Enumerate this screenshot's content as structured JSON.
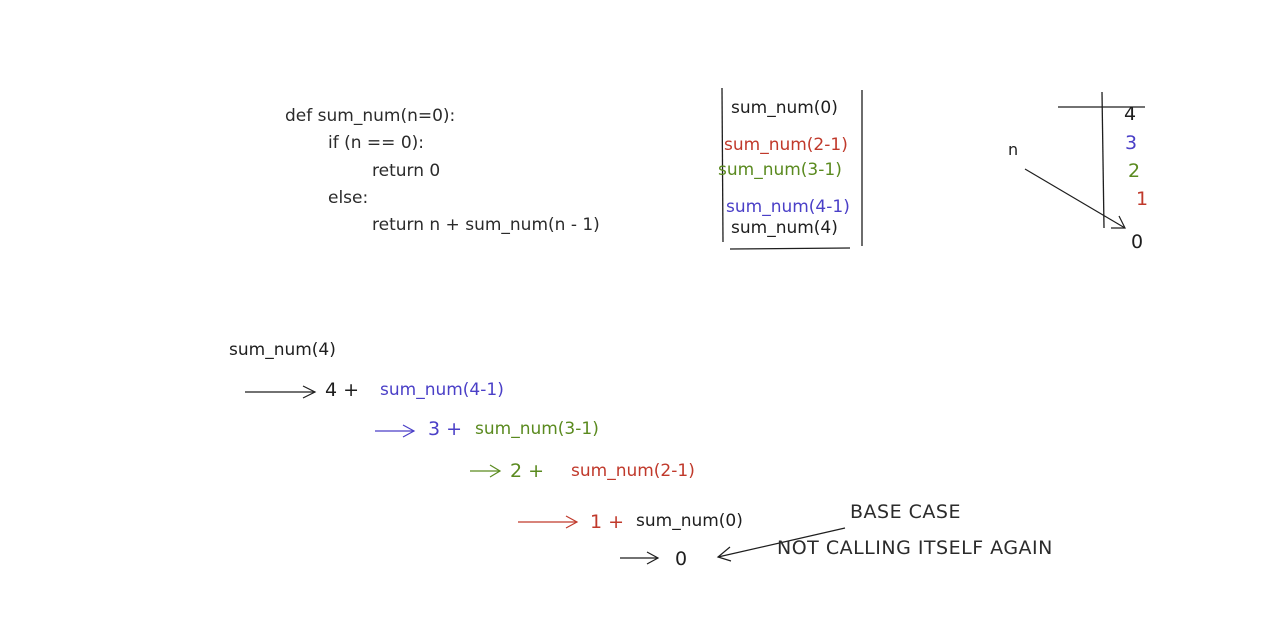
{
  "code": {
    "line1": "def sum_num(n=0):",
    "line2": "if (n == 0):",
    "line3": "return 0",
    "line4": "else:",
    "line5": "return n + sum_num(n - 1)"
  },
  "stack": {
    "frames": [
      "sum_num(0)",
      "sum_num(2-1)",
      "sum_num(3-1)",
      "sum_num(4-1)",
      "sum_num(4)"
    ]
  },
  "n_table": {
    "label": "n",
    "values": [
      "4",
      "3",
      "2",
      "1",
      "0"
    ]
  },
  "trace": {
    "call": "sum_num(4)",
    "step1_num": "4 +",
    "step1_call": "sum_num(4-1)",
    "step2_num": "3 +",
    "step2_call": "sum_num(3-1)",
    "step3_num": "2 +",
    "step3_call": "sum_num(2-1)",
    "step4_num": "1 +",
    "step4_call": "sum_num(0)",
    "result": "0"
  },
  "annotation": {
    "line1": "BASE CASE",
    "line2": "NOT CALLING ITSELF AGAIN"
  },
  "colors": {
    "black": "#1e1e1e",
    "red": "#c0392b",
    "green": "#5a8a1f",
    "blue": "#4a3fc7"
  }
}
